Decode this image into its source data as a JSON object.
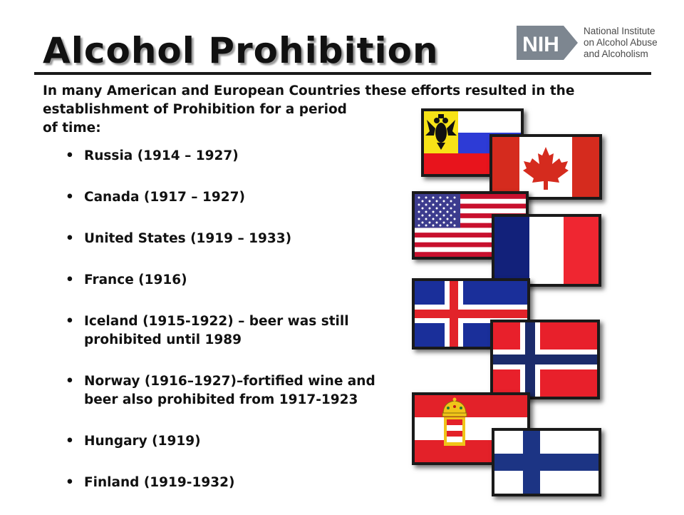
{
  "header": {
    "title": "Alcohol Prohibition",
    "logo": {
      "mark": "NIH",
      "lines": [
        "National Institute",
        "on Alcohol Abuse",
        "and Alcoholism"
      ]
    }
  },
  "intro": "In many American and European Countries these efforts resulted in the establishment of Prohibition for a period\n of time:",
  "items": [
    {
      "line1": "Russia (1914 – 1927)",
      "line2": ""
    },
    {
      "line1": "Canada (1917 – 1927)",
      "line2": ""
    },
    {
      "line1": "United States (1919 – 1933)",
      "line2": ""
    },
    {
      "line1": "France (1916)",
      "line2": ""
    },
    {
      "line1": "Iceland (1915-1922) – beer was still",
      "line2": "prohibited until 1989"
    },
    {
      "line1": "Norway (1916–1927)–fortified wine and",
      "line2": "beer also prohibited from 1917-1923"
    },
    {
      "line1": "Hungary (1919)",
      "line2": ""
    },
    {
      "line1": "Finland (1919-1932)",
      "line2": ""
    }
  ],
  "flags": [
    "russia-flag",
    "canada-flag",
    "usa-flag",
    "france-flag",
    "iceland-flag",
    "norway-flag",
    "austria-hungary-flag",
    "finland-flag"
  ]
}
